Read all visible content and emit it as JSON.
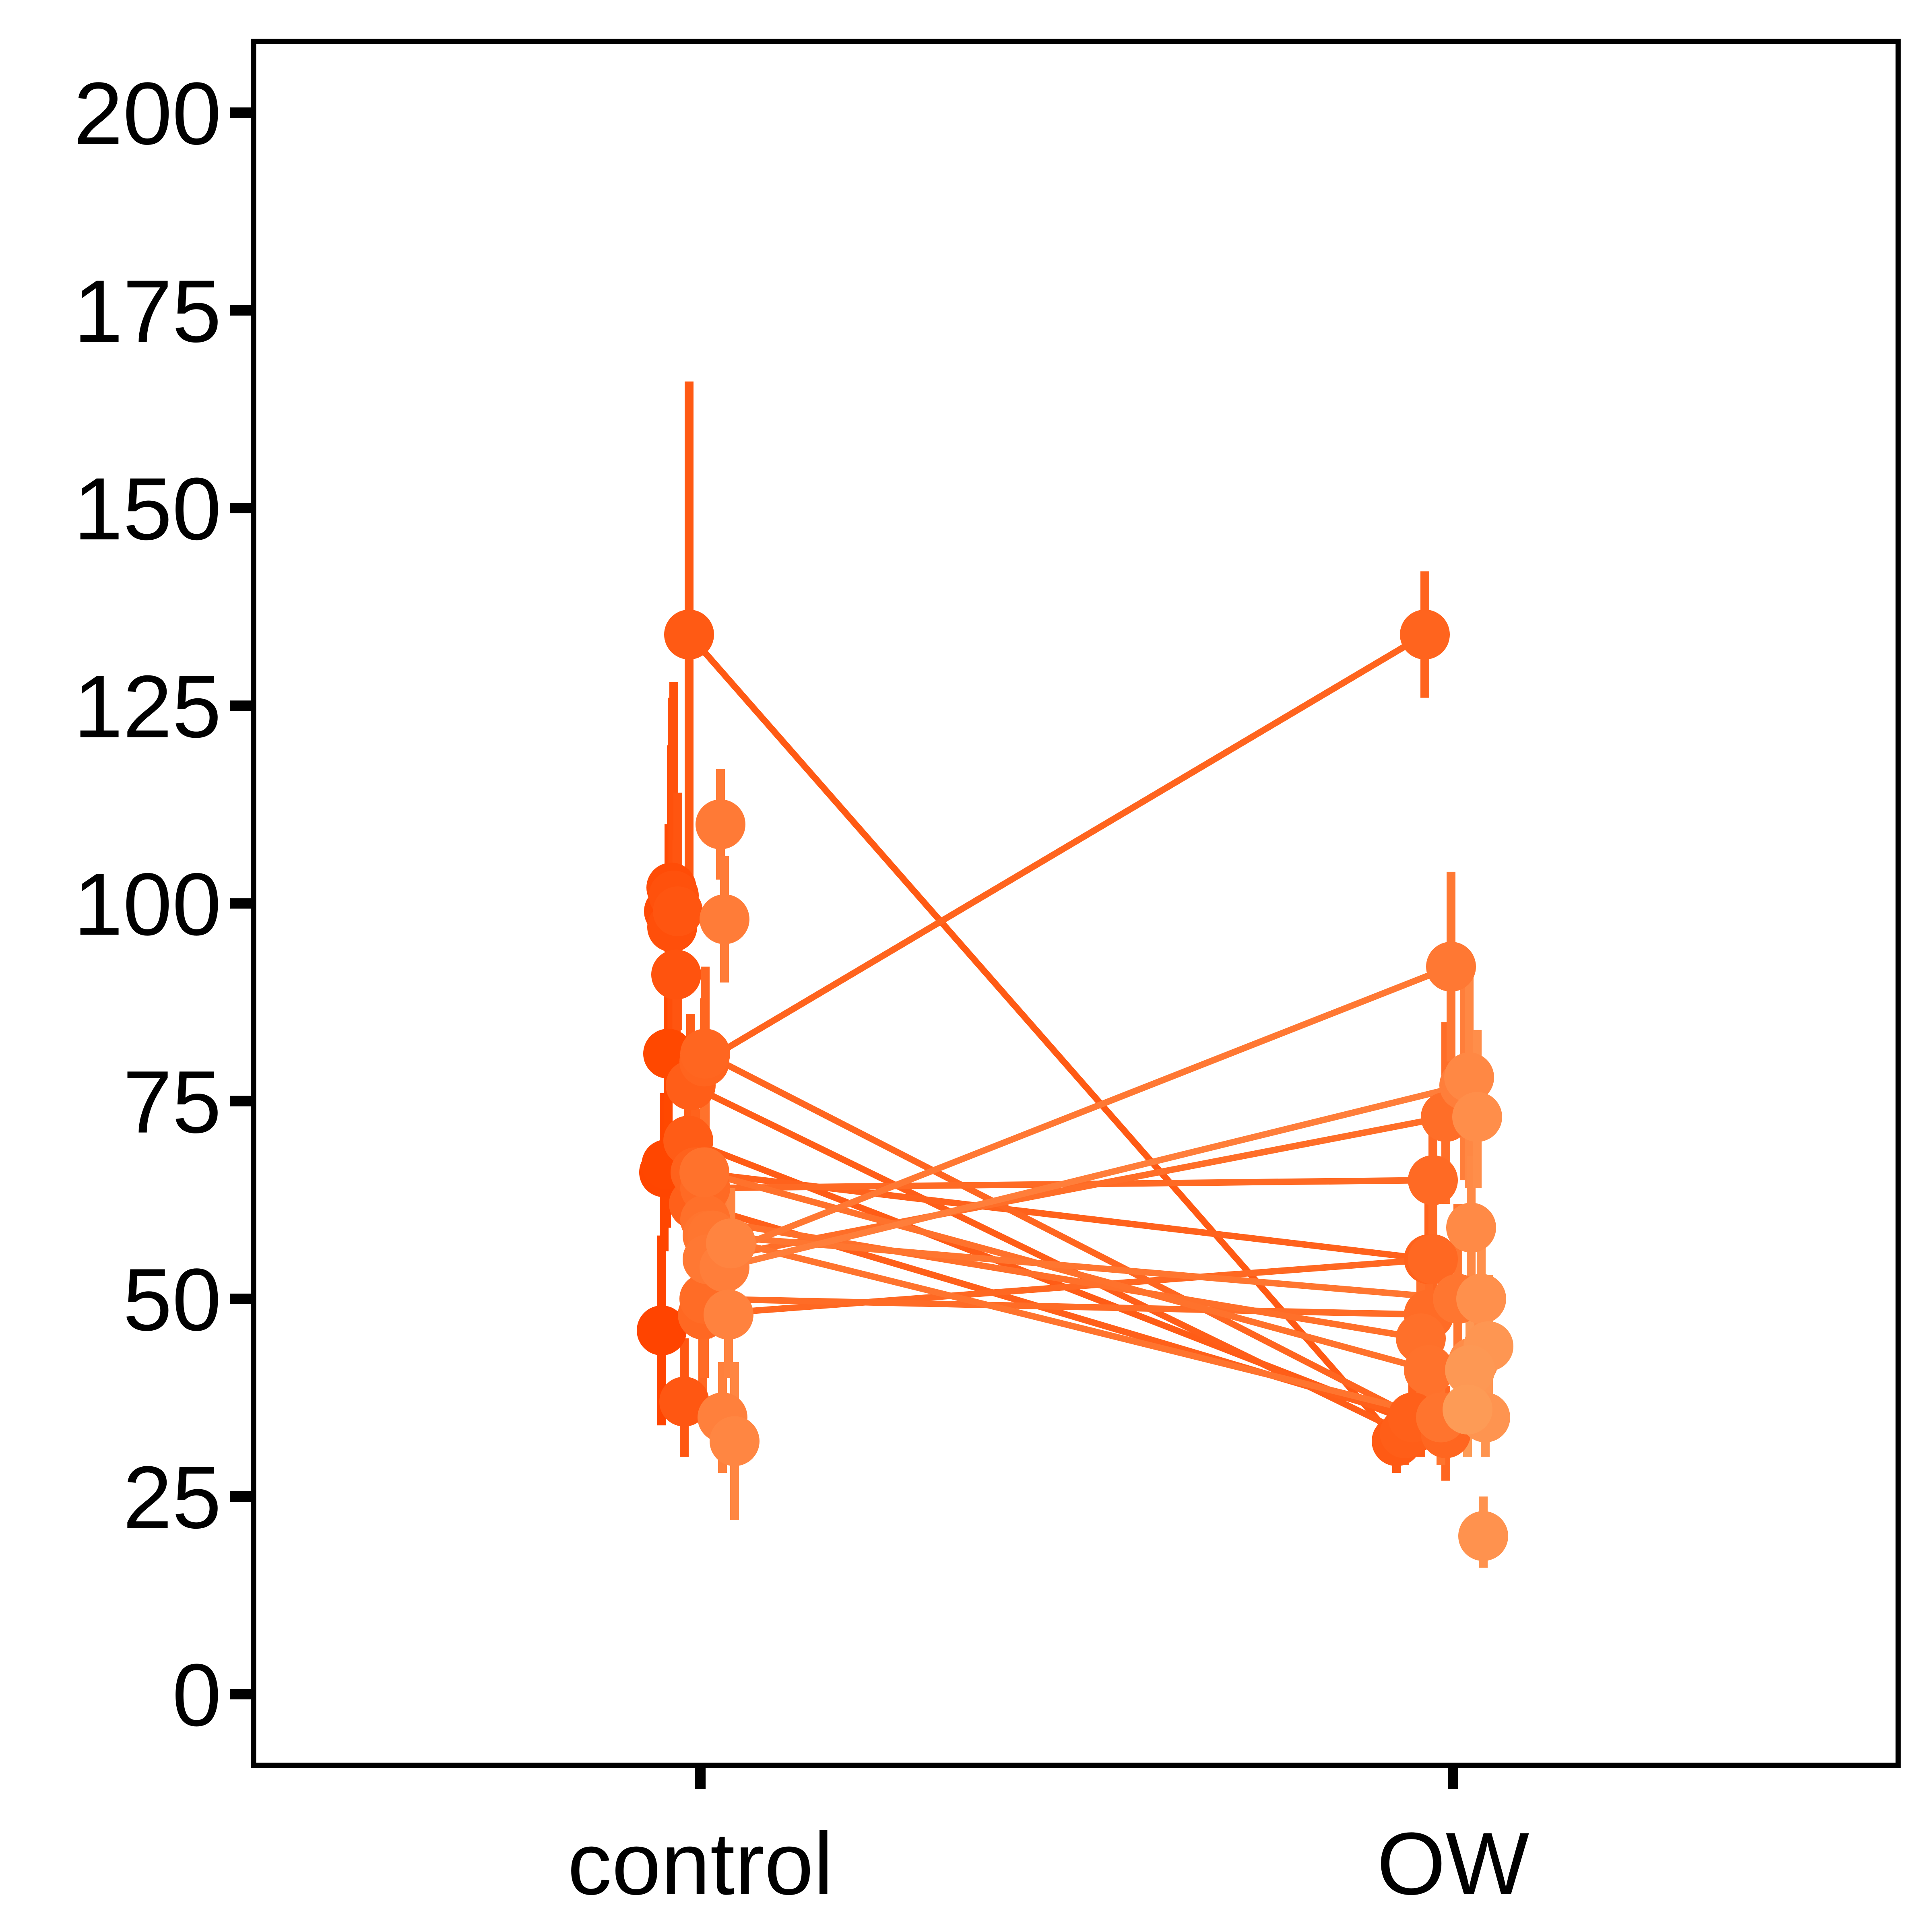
{
  "chart_data": {
    "type": "scatter",
    "title": "",
    "xlabel": "",
    "ylabel": "",
    "categories": [
      "control",
      "OW"
    ],
    "ylim": [
      -9,
      209
    ],
    "yticks": [
      0,
      25,
      50,
      75,
      100,
      125,
      150,
      175,
      200
    ],
    "grid": false,
    "legend": "none",
    "color_range": [
      "#ff4400",
      "#fda65c"
    ],
    "subjects": [
      {
        "color": "#ff4400",
        "control": {
          "x": -0.096,
          "y": 46,
          "lo": 34,
          "hi": 58
        }
      },
      {
        "color": "#ff4500",
        "control": {
          "x": -0.09,
          "y": 66,
          "lo": 56,
          "hi": 76
        }
      },
      {
        "color": "#ff4600",
        "control": {
          "x": -0.084,
          "y": 67,
          "lo": 59,
          "hi": 75
        }
      },
      {
        "color": "#ff4800",
        "control": {
          "x": -0.08,
          "y": 81,
          "lo": 71,
          "hi": 91
        }
      },
      {
        "color": "#ff4a05",
        "control": {
          "x": -0.078,
          "y": 99,
          "lo": 88,
          "hi": 110
        }
      },
      {
        "color": "#ff4c07",
        "control": {
          "x": -0.072,
          "y": 102,
          "lo": 84,
          "hi": 120
        }
      },
      {
        "color": "#ff4f0a",
        "control": {
          "x": -0.07,
          "y": 97,
          "lo": 80,
          "hi": 126
        }
      },
      {
        "color": "#ff510c",
        "control": {
          "x": -0.066,
          "y": 101,
          "lo": 88,
          "hi": 128
        }
      },
      {
        "color": "#ff530e",
        "control": {
          "x": -0.06,
          "y": 91,
          "lo": 82,
          "hi": 108
        }
      },
      {
        "color": "#ff5510",
        "control": {
          "x": -0.056,
          "y": 99,
          "lo": 84,
          "hi": 114
        }
      },
      {
        "color": "#ff5712",
        "control": {
          "x": -0.04,
          "y": 37,
          "lo": 30,
          "hi": 45
        }
      },
      {
        "color": "#ff5a14",
        "control": {
          "x": -0.028,
          "y": 134,
          "lo": 102,
          "hi": 166
        },
        "ow": {
          "x": -0.14,
          "y": 32,
          "lo": 28,
          "hi": 36
        }
      },
      {
        "color": "#ff5c16",
        "control": {
          "x": -0.03,
          "y": 70,
          "lo": 62,
          "hi": 78
        },
        "ow": {
          "x": -0.08,
          "y": 34,
          "lo": 30,
          "hi": 38
        }
      },
      {
        "color": "#ff5e18",
        "control": {
          "x": -0.024,
          "y": 77,
          "lo": 68,
          "hi": 86
        },
        "ow": {
          "x": -0.12,
          "y": 33,
          "lo": 29,
          "hi": 37
        }
      },
      {
        "color": "#ff601a",
        "control": {
          "x": -0.016,
          "y": 62,
          "lo": 55,
          "hi": 69
        },
        "ow": {
          "x": -0.1,
          "y": 35,
          "lo": 31,
          "hi": 40
        }
      },
      {
        "color": "#ff621c",
        "control": {
          "x": -0.012,
          "y": 66,
          "lo": 57,
          "hi": 74
        },
        "ow": {
          "x": -0.06,
          "y": 55,
          "lo": 45,
          "hi": 64
        }
      },
      {
        "color": "#ff641e",
        "control": {
          "x": 0.01,
          "y": 80,
          "lo": 72,
          "hi": 88
        },
        "ow": {
          "x": -0.07,
          "y": 134,
          "lo": 126,
          "hi": 142
        }
      },
      {
        "color": "#ff6620",
        "control": {
          "x": 0.012,
          "y": 81,
          "lo": 70,
          "hi": 92
        },
        "ow": {
          "x": -0.018,
          "y": 33,
          "lo": 27,
          "hi": 39
        }
      },
      {
        "color": "#ff6822",
        "control": {
          "x": 0.006,
          "y": 48,
          "lo": 38,
          "hi": 58
        },
        "ow": {
          "x": -0.05,
          "y": 55,
          "lo": 46,
          "hi": 64
        }
      },
      {
        "color": "#ff6a24",
        "control": {
          "x": 0.012,
          "y": 64,
          "lo": 56,
          "hi": 72
        },
        "ow": {
          "x": -0.05,
          "y": 65,
          "lo": 56,
          "hi": 75
        }
      },
      {
        "color": "#ff6c26",
        "control": {
          "x": 0.01,
          "y": 50,
          "lo": 40,
          "hi": 60
        },
        "ow": {
          "x": -0.06,
          "y": 48,
          "lo": 40,
          "hi": 58
        }
      },
      {
        "color": "#ff6e28",
        "control": {
          "x": 0.018,
          "y": 55,
          "lo": 45,
          "hi": 66
        },
        "ow": {
          "x": -0.018,
          "y": 73,
          "lo": 62,
          "hi": 85
        }
      },
      {
        "color": "#ff702a",
        "control": {
          "x": 0.012,
          "y": 60,
          "lo": 50,
          "hi": 70
        },
        "ow": {
          "x": -0.08,
          "y": 45,
          "lo": 36,
          "hi": 55
        }
      },
      {
        "color": "#ff722c",
        "control": {
          "x": 0.01,
          "y": 66,
          "lo": 56,
          "hi": 76
        },
        "ow": {
          "x": -0.06,
          "y": 41,
          "lo": 34,
          "hi": 48
        }
      },
      {
        "color": "#ff742e",
        "control": {
          "x": 0.018,
          "y": 58,
          "lo": 48,
          "hi": 68
        },
        "ow": {
          "x": -0.03,
          "y": 35,
          "lo": 29,
          "hi": 41
        }
      },
      {
        "color": "#ff7630",
        "control": {
          "x": 0.03,
          "y": 58,
          "lo": 48,
          "hi": 68
        },
        "ow": {
          "x": 0.012,
          "y": 50,
          "lo": 40,
          "hi": 62
        }
      },
      {
        "color": "#ff7833",
        "control": {
          "x": 0.018,
          "y": 55,
          "lo": 45,
          "hi": 66
        },
        "ow": {
          "x": -0.005,
          "y": 92,
          "lo": 80,
          "hi": 104
        }
      },
      {
        "color": "#ff7a36",
        "control": {
          "x": 0.05,
          "y": 110,
          "lo": 103,
          "hi": 117
        }
      },
      {
        "color": "#ff7c38",
        "control": {
          "x": 0.06,
          "y": 98,
          "lo": 90,
          "hi": 106
        }
      },
      {
        "color": "#ff7e3a",
        "control": {
          "x": 0.06,
          "y": 54,
          "lo": 45,
          "hi": 63
        },
        "ow": {
          "x": 0.028,
          "y": 77,
          "lo": 65,
          "hi": 90
        }
      },
      {
        "color": "#ff803c",
        "control": {
          "x": 0.055,
          "y": 35,
          "lo": 28,
          "hi": 42
        }
      },
      {
        "color": "#ff823e",
        "control": {
          "x": 0.07,
          "y": 48,
          "lo": 40,
          "hi": 56
        }
      },
      {
        "color": "#ff8440",
        "control": {
          "x": 0.076,
          "y": 57,
          "lo": 50,
          "hi": 64
        }
      },
      {
        "color": "#ff8642",
        "control": {
          "x": 0.085,
          "y": 32,
          "lo": 22,
          "hi": 42
        }
      },
      {
        "color": "#ff8844",
        "ow": {
          "x": 0.04,
          "y": 78,
          "lo": 64,
          "hi": 92
        }
      },
      {
        "color": "#ff8a46",
        "ow": {
          "x": 0.045,
          "y": 59,
          "lo": 50,
          "hi": 68
        }
      },
      {
        "color": "#ff8c48",
        "ow": {
          "x": 0.05,
          "y": 42,
          "lo": 34,
          "hi": 50
        }
      },
      {
        "color": "#ff8e4a",
        "ow": {
          "x": 0.06,
          "y": 73,
          "lo": 64,
          "hi": 84
        }
      },
      {
        "color": "#ff904c",
        "ow": {
          "x": 0.07,
          "y": 50,
          "lo": 43,
          "hi": 57
        }
      },
      {
        "color": "#ff924e",
        "ow": {
          "x": 0.075,
          "y": 20,
          "lo": 16,
          "hi": 25
        }
      },
      {
        "color": "#fe9450",
        "ow": {
          "x": 0.08,
          "y": 35,
          "lo": 30,
          "hi": 40
        }
      },
      {
        "color": "#fe9652",
        "ow": {
          "x": 0.088,
          "y": 44,
          "lo": 35,
          "hi": 53
        }
      },
      {
        "color": "#fd9854",
        "ow": {
          "x": 0.042,
          "y": 41,
          "lo": 34,
          "hi": 48
        }
      },
      {
        "color": "#fd9b56",
        "ow": {
          "x": 0.036,
          "y": 36,
          "lo": 30,
          "hi": 42
        }
      }
    ]
  }
}
